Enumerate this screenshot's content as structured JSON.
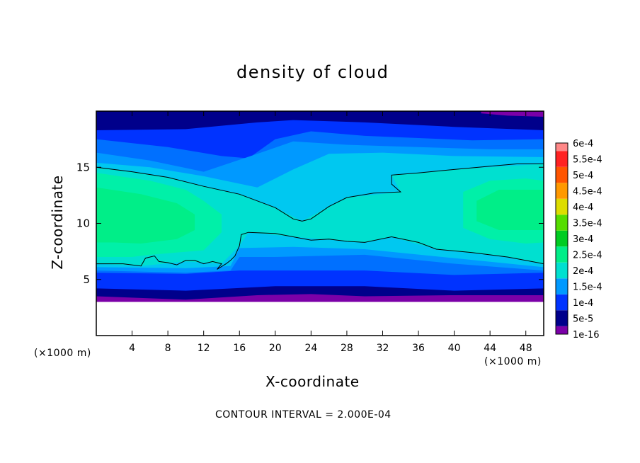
{
  "chart_data": {
    "type": "heatmap",
    "title": "density of cloud",
    "xlabel": "X-coordinate",
    "ylabel": "Z-coordinate",
    "x_unit": "(×1000 m)",
    "y_unit": "(×1000 m)",
    "xlim": [
      0,
      50
    ],
    "ylim": [
      0,
      20
    ],
    "x_ticks": [
      4,
      8,
      12,
      16,
      20,
      24,
      28,
      32,
      36,
      40,
      44,
      48
    ],
    "y_ticks": [
      5,
      10,
      15
    ],
    "footer": "CONTOUR INTERVAL = 2.000E-04",
    "colorbar": {
      "levels": [
        {
          "label": "1e-16",
          "color": "#7b00a8"
        },
        {
          "label": "5e-5",
          "color": "#00008b"
        },
        {
          "label": "1e-4",
          "color": "#0033ff"
        },
        {
          "label": "1.5e-4",
          "color": "#0099ff"
        },
        {
          "label": "2e-4",
          "color": "#00e0d0"
        },
        {
          "label": "2.5e-4",
          "color": "#00ee88"
        },
        {
          "label": "3e-4",
          "color": "#00cc22"
        },
        {
          "label": "3.5e-4",
          "color": "#55dd00"
        },
        {
          "label": "4e-4",
          "color": "#dddd00"
        },
        {
          "label": "4.5e-4",
          "color": "#ff9900"
        },
        {
          "label": "5e-4",
          "color": "#ff5500"
        },
        {
          "label": "5.5e-4",
          "color": "#ff2222"
        },
        {
          "label": "6e-4",
          "color": "#ff8888"
        }
      ]
    },
    "contours": [
      {
        "value": "2e-4",
        "points": [
          [
            0,
            15.0
          ],
          [
            4,
            14.6
          ],
          [
            8,
            14.1
          ],
          [
            12,
            13.3
          ],
          [
            16,
            12.6
          ],
          [
            20,
            11.4
          ],
          [
            22,
            10.4
          ],
          [
            23,
            10.2
          ],
          [
            24,
            10.4
          ],
          [
            26,
            11.5
          ],
          [
            28,
            12.3
          ],
          [
            31,
            12.7
          ],
          [
            34,
            12.8
          ],
          [
            33,
            13.5
          ],
          [
            33,
            14.3
          ],
          [
            36,
            14.5
          ],
          [
            40,
            14.8
          ],
          [
            44,
            15.1
          ],
          [
            47,
            15.3
          ],
          [
            50,
            15.3
          ]
        ]
      },
      {
        "value": "2e-4",
        "points": [
          [
            0,
            6.4
          ],
          [
            3,
            6.4
          ],
          [
            5,
            6.2
          ],
          [
            5.5,
            6.9
          ],
          [
            6.5,
            7.1
          ],
          [
            7,
            6.6
          ],
          [
            8,
            6.5
          ],
          [
            9,
            6.3
          ],
          [
            10,
            6.7
          ],
          [
            11,
            6.7
          ],
          [
            12,
            6.4
          ],
          [
            13,
            6.6
          ],
          [
            14,
            6.4
          ],
          [
            13.5,
            5.9
          ],
          [
            14.5,
            6.4
          ],
          [
            15,
            6.7
          ],
          [
            15.5,
            7.1
          ],
          [
            16,
            8.0
          ],
          [
            16.2,
            9.0
          ],
          [
            17,
            9.2
          ],
          [
            20,
            9.1
          ],
          [
            22,
            8.8
          ],
          [
            24,
            8.5
          ],
          [
            26,
            8.6
          ],
          [
            28,
            8.4
          ],
          [
            30,
            8.3
          ],
          [
            33,
            8.8
          ],
          [
            36,
            8.3
          ],
          [
            38,
            7.7
          ],
          [
            42,
            7.4
          ],
          [
            46,
            7.0
          ],
          [
            50,
            6.4
          ]
        ]
      }
    ]
  }
}
